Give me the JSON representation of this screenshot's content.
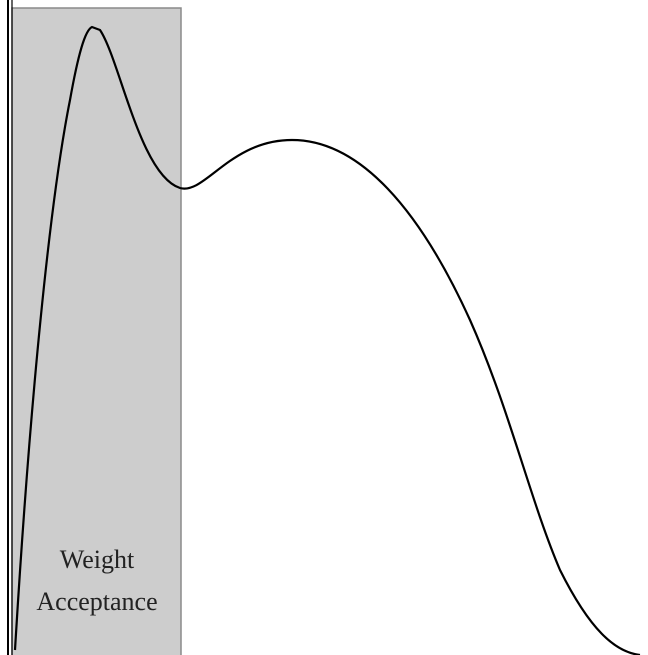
{
  "label": {
    "lines": [
      "Weight",
      "Acceptance"
    ]
  }
}
